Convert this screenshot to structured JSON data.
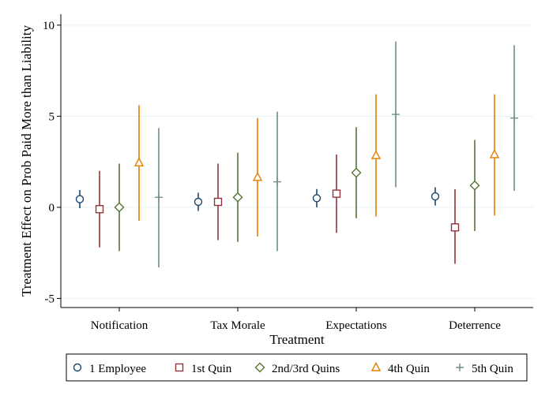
{
  "chart_data": {
    "type": "scatter",
    "subtype": "point-estimate-with-confidence-intervals",
    "title": "",
    "xlabel": "Treatment",
    "ylabel": "Treatment Effect on Prob Paid More than Liability",
    "ylim": [
      -5.5,
      10.6
    ],
    "yticks": [
      -5,
      0,
      5,
      10
    ],
    "grid": "horizontal",
    "legend_position": "bottom",
    "categories": [
      "Notification",
      "Tax Morale",
      "Expectations",
      "Deterrence"
    ],
    "series": [
      {
        "name": "1 Employee",
        "marker": "circle",
        "color": "#1a476f",
        "estimates": [
          0.45,
          0.3,
          0.5,
          0.6
        ],
        "ci_low": [
          -0.05,
          -0.2,
          0.0,
          0.1
        ],
        "ci_high": [
          0.95,
          0.8,
          1.0,
          1.1
        ]
      },
      {
        "name": "1st Quin",
        "marker": "square",
        "color": "#90353b",
        "estimates": [
          -0.1,
          0.3,
          0.75,
          -1.1
        ],
        "ci_low": [
          -2.2,
          -1.8,
          -1.4,
          -3.1
        ],
        "ci_high": [
          2.0,
          2.4,
          2.9,
          1.0
        ]
      },
      {
        "name": "2nd/3rd Quins",
        "marker": "diamond",
        "color": "#55752f",
        "estimates": [
          0.0,
          0.55,
          1.9,
          1.2
        ],
        "ci_low": [
          -2.4,
          -1.9,
          -0.6,
          -1.3
        ],
        "ci_high": [
          2.4,
          3.0,
          4.4,
          3.7
        ]
      },
      {
        "name": "4th Quin",
        "marker": "triangle",
        "color": "#e37e00",
        "estimates": [
          2.45,
          1.65,
          2.85,
          2.9
        ],
        "ci_low": [
          -0.75,
          -1.6,
          -0.5,
          -0.45
        ],
        "ci_high": [
          5.6,
          4.9,
          6.2,
          6.2
        ]
      },
      {
        "name": "5th Quin",
        "marker": "plus",
        "color": "#6e8e84",
        "estimates": [
          0.55,
          1.4,
          5.1,
          4.9
        ],
        "ci_low": [
          -3.3,
          -2.4,
          1.1,
          0.9
        ],
        "ci_high": [
          4.35,
          5.25,
          9.1,
          8.9
        ]
      }
    ]
  }
}
